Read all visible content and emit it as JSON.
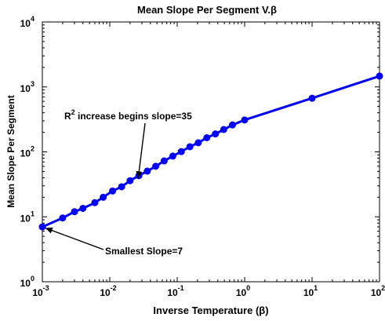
{
  "chart_data": {
    "type": "line",
    "title": "Mean Slope Per Segment V.β",
    "xlabel": "Inverse Temperature (β)",
    "ylabel": "Mean Slope Per Segment",
    "xscale": "log",
    "yscale": "log",
    "xlim": [
      0.001,
      100
    ],
    "ylim": [
      1,
      10000
    ],
    "x_ticks": [
      {
        "base": "10",
        "exp": "-3",
        "value": 0.001
      },
      {
        "base": "10",
        "exp": "-2",
        "value": 0.01
      },
      {
        "base": "10",
        "exp": "-1",
        "value": 0.1
      },
      {
        "base": "10",
        "exp": "0",
        "value": 1
      },
      {
        "base": "10",
        "exp": "1",
        "value": 10
      },
      {
        "base": "10",
        "exp": "2",
        "value": 100
      }
    ],
    "y_ticks": [
      {
        "base": "10",
        "exp": "0",
        "value": 1
      },
      {
        "base": "10",
        "exp": "1",
        "value": 10
      },
      {
        "base": "10",
        "exp": "2",
        "value": 100
      },
      {
        "base": "10",
        "exp": "3",
        "value": 1000
      },
      {
        "base": "10",
        "exp": "4",
        "value": 10000
      }
    ],
    "grid": false,
    "line_color": "#0000ff",
    "series": [
      {
        "x": [
          0.001,
          0.002,
          0.003,
          0.004,
          0.006,
          0.008,
          0.011,
          0.015,
          0.02,
          0.027,
          0.036,
          0.048,
          0.064,
          0.086,
          0.115,
          0.154,
          0.205,
          0.275,
          0.368,
          0.49,
          0.66,
          1,
          10,
          100
        ],
        "y": [
          7,
          9.6,
          12,
          13.5,
          16.5,
          20,
          25,
          29,
          36,
          43,
          50.5,
          60,
          72.5,
          86,
          101,
          120,
          138,
          165,
          189,
          221,
          260,
          310,
          670,
          1470
        ]
      }
    ],
    "annotations": [
      {
        "text_pre": "R",
        "text_sup": "2",
        "text_post": " increase begins slope=35",
        "target": {
          "x": 0.026,
          "y": 35
        }
      },
      {
        "text_pre": "Smallest Slope=7",
        "text_sup": "",
        "text_post": "",
        "target": {
          "x": 0.001,
          "y": 7
        }
      }
    ]
  }
}
